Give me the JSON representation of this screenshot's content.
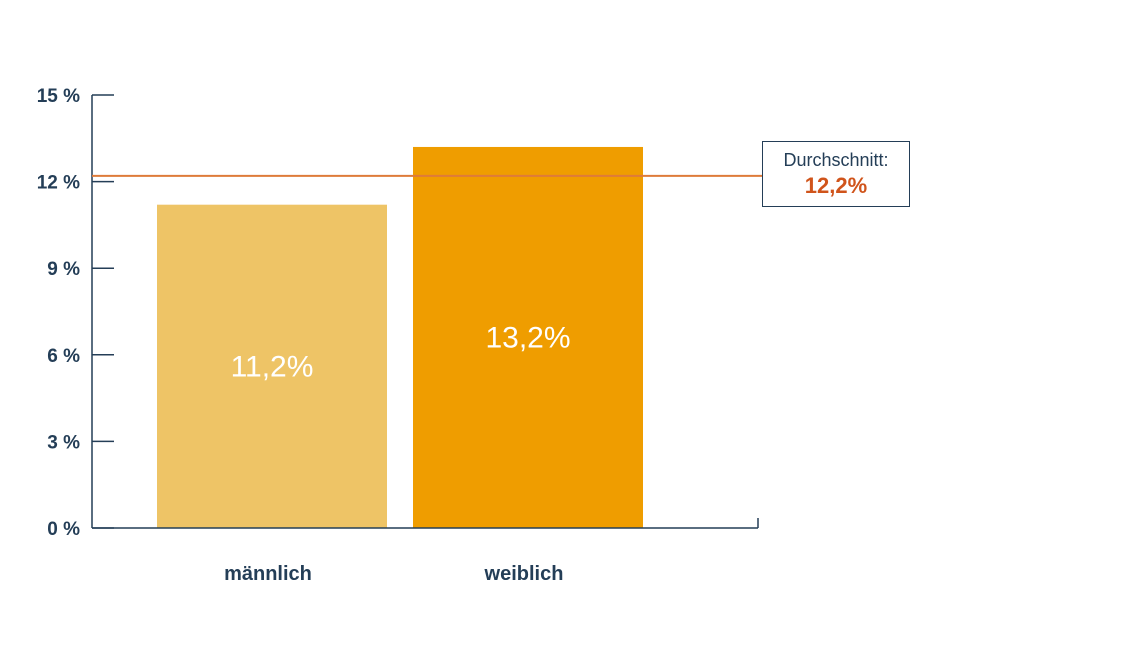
{
  "colors": {
    "axis": "#243e57",
    "bar_male": "#eec466",
    "bar_female": "#ef9d00",
    "average_line": "#de7b3a",
    "average_value": "#d0541b"
  },
  "chart_data": {
    "type": "bar",
    "categories": [
      "männlich",
      "weiblich"
    ],
    "values": [
      11.2,
      13.2
    ],
    "data_labels": [
      "11,2%",
      "13,2%"
    ],
    "yticks": [
      0,
      3,
      6,
      9,
      12,
      15
    ],
    "ytick_labels": [
      "0 %",
      "3 %",
      "6 %",
      "9 %",
      "12 %",
      "15 %"
    ],
    "ylim": [
      0,
      15
    ],
    "title": "",
    "xlabel": "",
    "ylabel": "",
    "grid": false,
    "average": {
      "value": 12.2,
      "title": "Durchschnitt:",
      "label": "12,2%"
    }
  }
}
